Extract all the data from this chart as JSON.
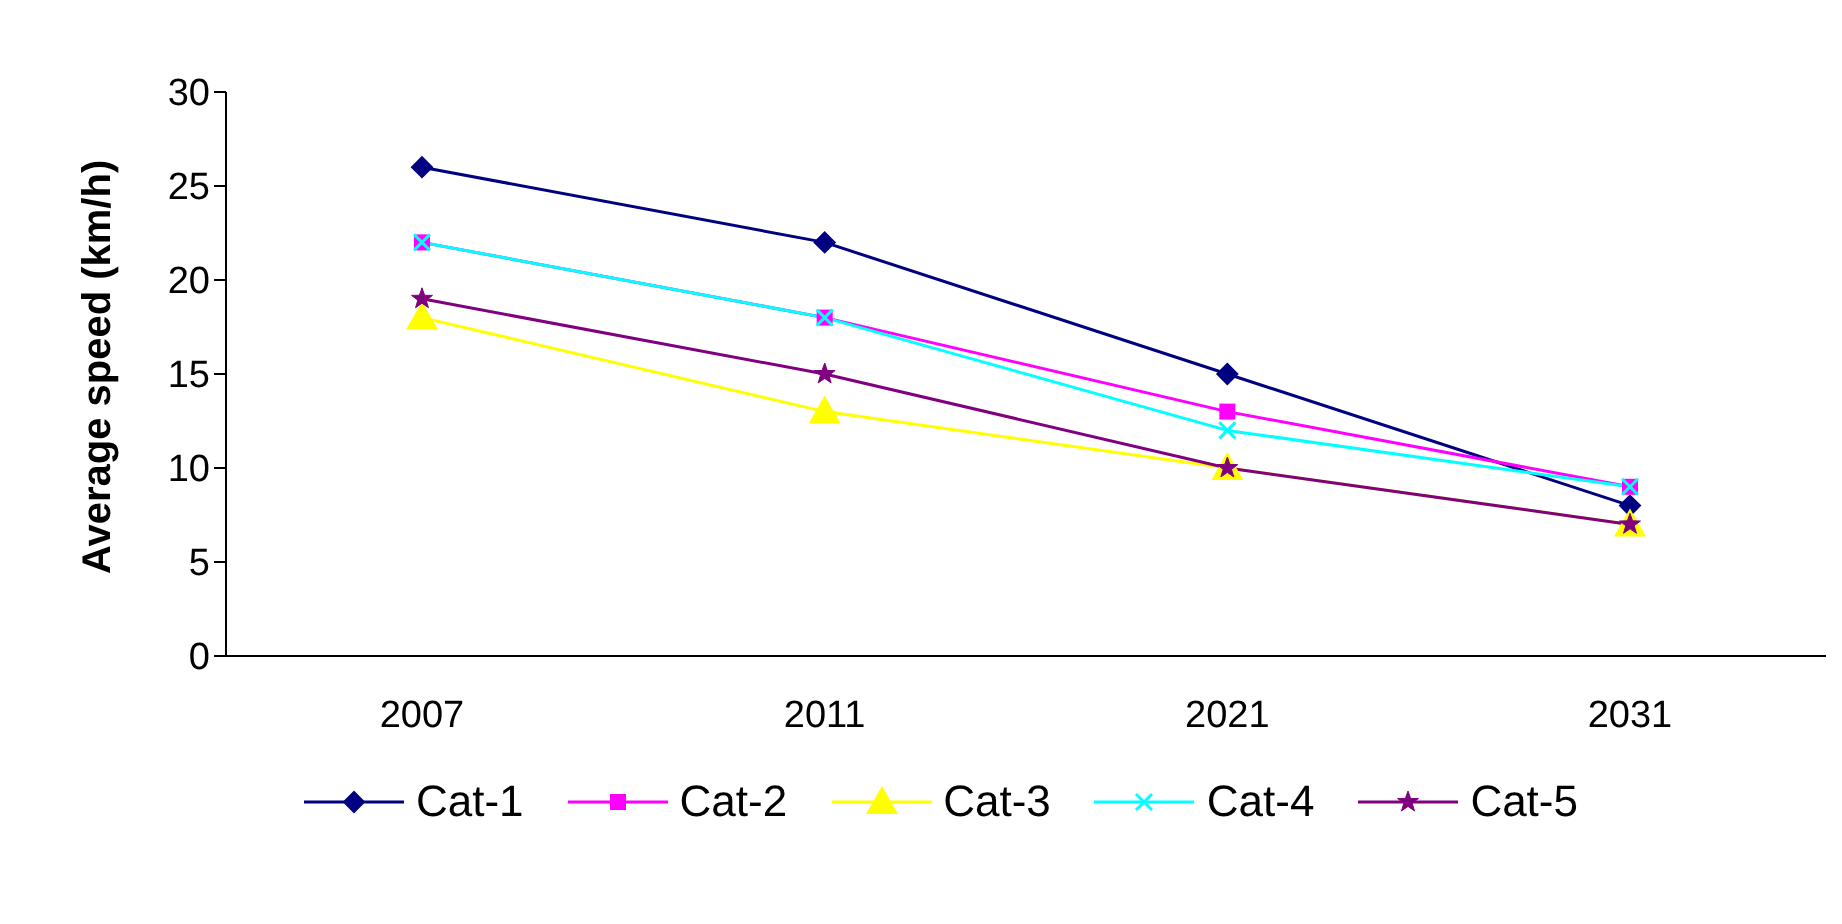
{
  "chart_data": {
    "type": "line",
    "ylabel": "Average speed (km/h)",
    "categories": [
      "2007",
      "2011",
      "2021",
      "2031"
    ],
    "ylim": [
      0,
      30
    ],
    "yticks": [
      0,
      5,
      10,
      15,
      20,
      25,
      30
    ],
    "grid": false,
    "legend": "bottom",
    "series": [
      {
        "name": "Cat-1",
        "color": "#000080",
        "marker": "diamond",
        "values": [
          26,
          22,
          15,
          8
        ]
      },
      {
        "name": "Cat-2",
        "color": "#ff00ff",
        "marker": "square",
        "values": [
          22,
          18,
          13,
          9
        ]
      },
      {
        "name": "Cat-3",
        "color": "#ffff00",
        "marker": "triangle",
        "values": [
          18,
          13,
          10,
          7
        ]
      },
      {
        "name": "Cat-4",
        "color": "#00ffff",
        "marker": "cross",
        "values": [
          22,
          18,
          12,
          9
        ]
      },
      {
        "name": "Cat-5",
        "color": "#800080",
        "marker": "star",
        "values": [
          19,
          15,
          10,
          7
        ]
      }
    ]
  }
}
